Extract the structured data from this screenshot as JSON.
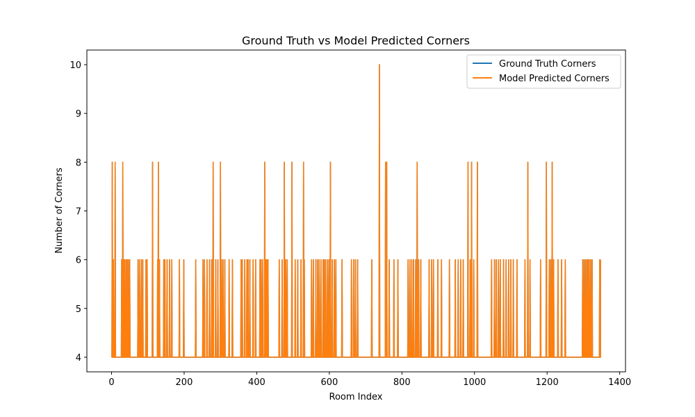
{
  "chart_data": {
    "type": "line",
    "title": "Ground Truth vs Model Predicted Corners",
    "xlabel": "Room Index",
    "ylabel": "Number of Corners",
    "xlim": [
      -68,
      1416
    ],
    "ylim": [
      3.7,
      10.3
    ],
    "xticks": [
      0,
      200,
      400,
      600,
      800,
      1000,
      1200,
      1400
    ],
    "yticks": [
      4,
      5,
      6,
      7,
      8,
      9,
      10
    ],
    "grid": false,
    "legend_position": "top-right",
    "baseline": 4,
    "x_end": 1347,
    "series": [
      {
        "name": "Ground Truth Corners",
        "color": "#1f77b4",
        "spikes": [
          [
            2,
            8
          ],
          [
            5,
            6
          ],
          [
            10,
            8
          ],
          [
            28,
            6
          ],
          [
            31,
            8
          ],
          [
            34,
            6
          ],
          [
            37,
            6
          ],
          [
            41,
            6
          ],
          [
            44,
            6
          ],
          [
            48,
            6
          ],
          [
            50,
            6
          ],
          [
            73,
            6
          ],
          [
            77,
            6
          ],
          [
            82,
            6
          ],
          [
            86,
            6
          ],
          [
            95,
            6
          ],
          [
            98,
            6
          ],
          [
            113,
            8
          ],
          [
            127,
            6
          ],
          [
            129,
            8
          ],
          [
            132,
            6
          ],
          [
            144,
            6
          ],
          [
            147,
            6
          ],
          [
            153,
            6
          ],
          [
            160,
            6
          ],
          [
            166,
            6
          ],
          [
            187,
            6
          ],
          [
            199,
            6
          ],
          [
            232,
            6
          ],
          [
            252,
            6
          ],
          [
            256,
            6
          ],
          [
            263,
            6
          ],
          [
            270,
            6
          ],
          [
            276,
            6
          ],
          [
            280,
            8
          ],
          [
            287,
            6
          ],
          [
            293,
            6
          ],
          [
            300,
            8
          ],
          [
            303,
            6
          ],
          [
            307,
            6
          ],
          [
            312,
            6
          ],
          [
            324,
            6
          ],
          [
            333,
            6
          ],
          [
            357,
            6
          ],
          [
            360,
            6
          ],
          [
            367,
            6
          ],
          [
            373,
            6
          ],
          [
            376,
            6
          ],
          [
            381,
            6
          ],
          [
            390,
            6
          ],
          [
            397,
            6
          ],
          [
            409,
            6
          ],
          [
            412,
            6
          ],
          [
            416,
            6
          ],
          [
            422,
            8
          ],
          [
            425,
            6
          ],
          [
            428,
            6
          ],
          [
            431,
            6
          ],
          [
            462,
            6
          ],
          [
            470,
            6
          ],
          [
            476,
            8
          ],
          [
            480,
            6
          ],
          [
            484,
            6
          ],
          [
            497,
            8
          ],
          [
            506,
            6
          ],
          [
            513,
            6
          ],
          [
            522,
            6
          ],
          [
            529,
            8
          ],
          [
            531,
            6
          ],
          [
            551,
            6
          ],
          [
            556,
            6
          ],
          [
            563,
            6
          ],
          [
            568,
            6
          ],
          [
            572,
            6
          ],
          [
            577,
            6
          ],
          [
            583,
            6
          ],
          [
            586,
            6
          ],
          [
            590,
            6
          ],
          [
            595,
            6
          ],
          [
            599,
            6
          ],
          [
            603,
            8
          ],
          [
            608,
            6
          ],
          [
            614,
            6
          ],
          [
            618,
            6
          ],
          [
            635,
            6
          ],
          [
            661,
            6
          ],
          [
            667,
            6
          ],
          [
            672,
            6
          ],
          [
            678,
            6
          ],
          [
            717,
            6
          ],
          [
            738,
            10
          ],
          [
            755,
            8
          ],
          [
            758,
            8
          ],
          [
            765,
            6
          ],
          [
            778,
            6
          ],
          [
            789,
            6
          ],
          [
            817,
            6
          ],
          [
            822,
            6
          ],
          [
            827,
            6
          ],
          [
            832,
            6
          ],
          [
            838,
            6
          ],
          [
            842,
            8
          ],
          [
            846,
            6
          ],
          [
            852,
            6
          ],
          [
            875,
            6
          ],
          [
            882,
            6
          ],
          [
            887,
            6
          ],
          [
            899,
            6
          ],
          [
            909,
            6
          ],
          [
            931,
            6
          ],
          [
            947,
            6
          ],
          [
            955,
            6
          ],
          [
            962,
            6
          ],
          [
            969,
            6
          ],
          [
            982,
            8
          ],
          [
            988,
            6
          ],
          [
            992,
            8
          ],
          [
            998,
            6
          ],
          [
            1008,
            8
          ],
          [
            1047,
            6
          ],
          [
            1055,
            6
          ],
          [
            1060,
            6
          ],
          [
            1066,
            6
          ],
          [
            1071,
            6
          ],
          [
            1080,
            6
          ],
          [
            1087,
            6
          ],
          [
            1094,
            6
          ],
          [
            1100,
            6
          ],
          [
            1107,
            6
          ],
          [
            1117,
            6
          ],
          [
            1139,
            6
          ],
          [
            1147,
            8
          ],
          [
            1153,
            6
          ],
          [
            1182,
            6
          ],
          [
            1198,
            8
          ],
          [
            1206,
            6
          ],
          [
            1210,
            6
          ],
          [
            1214,
            8
          ],
          [
            1218,
            6
          ],
          [
            1230,
            6
          ],
          [
            1240,
            6
          ],
          [
            1250,
            6
          ],
          [
            1298,
            6
          ],
          [
            1302,
            6
          ],
          [
            1306,
            6
          ],
          [
            1310,
            6
          ],
          [
            1313,
            6
          ],
          [
            1316,
            6
          ],
          [
            1320,
            6
          ],
          [
            1324,
            6
          ],
          [
            1345,
            6
          ]
        ]
      },
      {
        "name": "Model Predicted Corners",
        "color": "#ff7f0e",
        "spikes": [
          [
            2,
            8
          ],
          [
            5,
            6
          ],
          [
            10,
            8
          ],
          [
            28,
            6
          ],
          [
            31,
            8
          ],
          [
            34,
            6
          ],
          [
            37,
            6
          ],
          [
            41,
            6
          ],
          [
            44,
            6
          ],
          [
            48,
            6
          ],
          [
            50,
            6
          ],
          [
            73,
            6
          ],
          [
            77,
            6
          ],
          [
            82,
            6
          ],
          [
            86,
            6
          ],
          [
            95,
            6
          ],
          [
            98,
            6
          ],
          [
            113,
            8
          ],
          [
            127,
            6
          ],
          [
            129,
            8
          ],
          [
            132,
            6
          ],
          [
            144,
            6
          ],
          [
            147,
            6
          ],
          [
            153,
            6
          ],
          [
            160,
            6
          ],
          [
            166,
            6
          ],
          [
            187,
            6
          ],
          [
            199,
            6
          ],
          [
            232,
            6
          ],
          [
            252,
            6
          ],
          [
            256,
            6
          ],
          [
            263,
            6
          ],
          [
            270,
            6
          ],
          [
            276,
            6
          ],
          [
            280,
            8
          ],
          [
            287,
            6
          ],
          [
            293,
            6
          ],
          [
            300,
            8
          ],
          [
            303,
            6
          ],
          [
            307,
            6
          ],
          [
            312,
            6
          ],
          [
            324,
            6
          ],
          [
            333,
            6
          ],
          [
            357,
            6
          ],
          [
            360,
            6
          ],
          [
            367,
            6
          ],
          [
            373,
            6
          ],
          [
            376,
            6
          ],
          [
            381,
            6
          ],
          [
            390,
            6
          ],
          [
            397,
            6
          ],
          [
            409,
            6
          ],
          [
            412,
            6
          ],
          [
            416,
            6
          ],
          [
            422,
            8
          ],
          [
            425,
            6
          ],
          [
            428,
            6
          ],
          [
            431,
            6
          ],
          [
            462,
            6
          ],
          [
            470,
            6
          ],
          [
            476,
            8
          ],
          [
            480,
            6
          ],
          [
            484,
            6
          ],
          [
            497,
            8
          ],
          [
            506,
            6
          ],
          [
            513,
            6
          ],
          [
            522,
            6
          ],
          [
            529,
            8
          ],
          [
            531,
            6
          ],
          [
            551,
            6
          ],
          [
            556,
            6
          ],
          [
            563,
            6
          ],
          [
            568,
            6
          ],
          [
            572,
            6
          ],
          [
            577,
            6
          ],
          [
            583,
            6
          ],
          [
            586,
            6
          ],
          [
            590,
            6
          ],
          [
            595,
            6
          ],
          [
            599,
            6
          ],
          [
            603,
            8
          ],
          [
            608,
            6
          ],
          [
            614,
            6
          ],
          [
            618,
            6
          ],
          [
            635,
            6
          ],
          [
            661,
            6
          ],
          [
            667,
            6
          ],
          [
            672,
            6
          ],
          [
            678,
            6
          ],
          [
            717,
            6
          ],
          [
            738,
            10
          ],
          [
            755,
            8
          ],
          [
            758,
            8
          ],
          [
            765,
            6
          ],
          [
            778,
            6
          ],
          [
            789,
            6
          ],
          [
            817,
            6
          ],
          [
            822,
            6
          ],
          [
            827,
            6
          ],
          [
            832,
            6
          ],
          [
            838,
            6
          ],
          [
            842,
            8
          ],
          [
            846,
            6
          ],
          [
            852,
            6
          ],
          [
            875,
            6
          ],
          [
            882,
            6
          ],
          [
            887,
            6
          ],
          [
            899,
            6
          ],
          [
            909,
            6
          ],
          [
            931,
            6
          ],
          [
            947,
            6
          ],
          [
            955,
            6
          ],
          [
            962,
            6
          ],
          [
            969,
            6
          ],
          [
            982,
            8
          ],
          [
            988,
            6
          ],
          [
            992,
            8
          ],
          [
            998,
            6
          ],
          [
            1008,
            8
          ],
          [
            1047,
            6
          ],
          [
            1055,
            6
          ],
          [
            1060,
            6
          ],
          [
            1066,
            6
          ],
          [
            1071,
            6
          ],
          [
            1080,
            6
          ],
          [
            1087,
            6
          ],
          [
            1094,
            6
          ],
          [
            1100,
            6
          ],
          [
            1107,
            6
          ],
          [
            1117,
            6
          ],
          [
            1139,
            6
          ],
          [
            1147,
            8
          ],
          [
            1153,
            6
          ],
          [
            1182,
            6
          ],
          [
            1198,
            8
          ],
          [
            1206,
            6
          ],
          [
            1210,
            6
          ],
          [
            1214,
            8
          ],
          [
            1218,
            6
          ],
          [
            1230,
            6
          ],
          [
            1240,
            6
          ],
          [
            1250,
            6
          ],
          [
            1298,
            6
          ],
          [
            1302,
            6
          ],
          [
            1306,
            6
          ],
          [
            1310,
            6
          ],
          [
            1313,
            6
          ],
          [
            1316,
            6
          ],
          [
            1320,
            6
          ],
          [
            1324,
            6
          ],
          [
            1345,
            6
          ]
        ]
      }
    ]
  }
}
